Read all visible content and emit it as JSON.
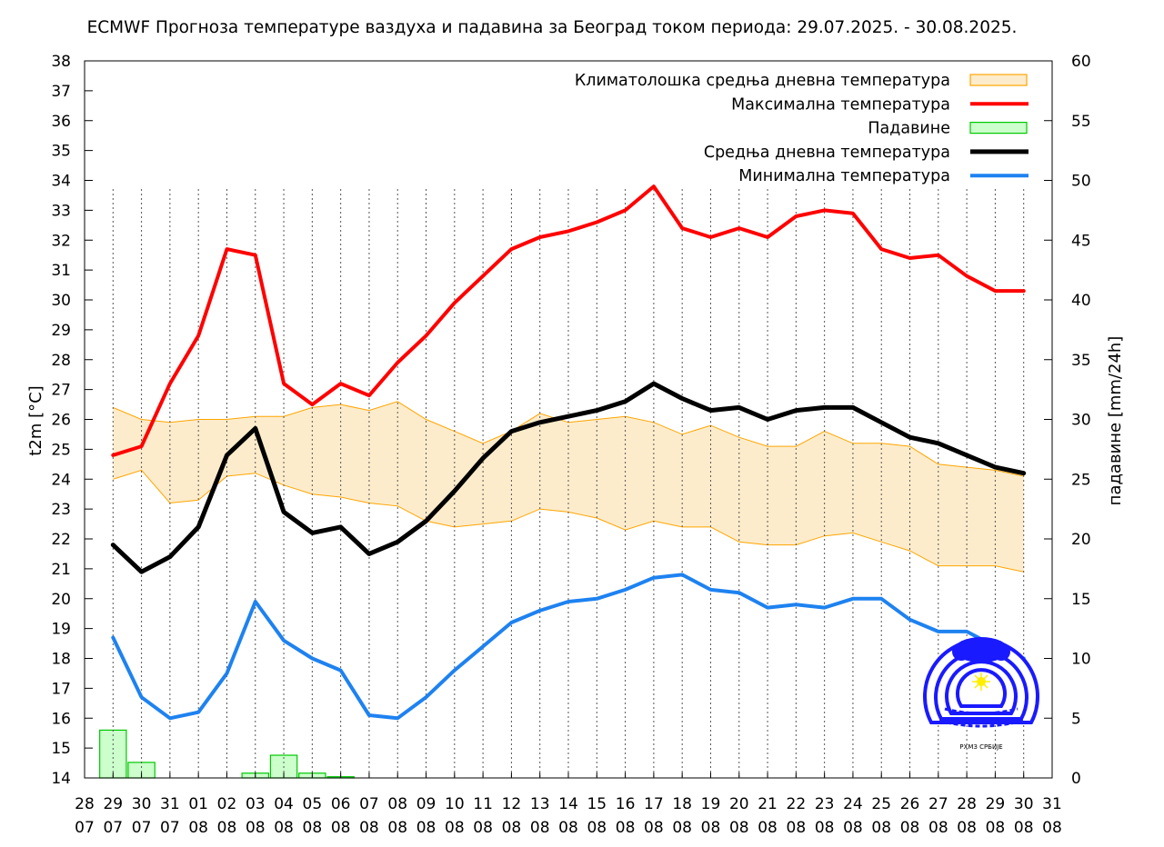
{
  "chart_data": {
    "type": "line",
    "title": "ECMWF Прогноза температуре ваздуха и падавина за Београд током периода: 29.07.2025. - 30.08.2025.",
    "ylabel": "t2m [°C]",
    "y2label": "падавине [mm/24h]",
    "ylim": [
      14,
      38
    ],
    "y2lim": [
      0,
      60
    ],
    "grid": "vertical dotted",
    "legend_position": "top-right",
    "x_ticks": [
      {
        "day": "28",
        "month": "07"
      },
      {
        "day": "29",
        "month": "07"
      },
      {
        "day": "30",
        "month": "07"
      },
      {
        "day": "31",
        "month": "07"
      },
      {
        "day": "01",
        "month": "08"
      },
      {
        "day": "02",
        "month": "08"
      },
      {
        "day": "03",
        "month": "08"
      },
      {
        "day": "04",
        "month": "08"
      },
      {
        "day": "05",
        "month": "08"
      },
      {
        "day": "06",
        "month": "08"
      },
      {
        "day": "07",
        "month": "08"
      },
      {
        "day": "08",
        "month": "08"
      },
      {
        "day": "09",
        "month": "08"
      },
      {
        "day": "10",
        "month": "08"
      },
      {
        "day": "11",
        "month": "08"
      },
      {
        "day": "12",
        "month": "08"
      },
      {
        "day": "13",
        "month": "08"
      },
      {
        "day": "14",
        "month": "08"
      },
      {
        "day": "15",
        "month": "08"
      },
      {
        "day": "16",
        "month": "08"
      },
      {
        "day": "17",
        "month": "08"
      },
      {
        "day": "18",
        "month": "08"
      },
      {
        "day": "19",
        "month": "08"
      },
      {
        "day": "20",
        "month": "08"
      },
      {
        "day": "21",
        "month": "08"
      },
      {
        "day": "22",
        "month": "08"
      },
      {
        "day": "23",
        "month": "08"
      },
      {
        "day": "24",
        "month": "08"
      },
      {
        "day": "25",
        "month": "08"
      },
      {
        "day": "26",
        "month": "08"
      },
      {
        "day": "27",
        "month": "08"
      },
      {
        "day": "28",
        "month": "08"
      },
      {
        "day": "29",
        "month": "08"
      },
      {
        "day": "30",
        "month": "08"
      },
      {
        "day": "31",
        "month": "08"
      }
    ],
    "y_ticks": [
      14,
      15,
      16,
      17,
      18,
      19,
      20,
      21,
      22,
      23,
      24,
      25,
      26,
      27,
      28,
      29,
      30,
      31,
      32,
      33,
      34,
      35,
      36,
      37,
      38
    ],
    "y2_ticks": [
      0,
      5,
      10,
      15,
      20,
      25,
      30,
      35,
      40,
      45,
      50,
      55,
      60
    ],
    "dates": [
      "29.07",
      "30.07",
      "31.07",
      "01.08",
      "02.08",
      "03.08",
      "04.08",
      "05.08",
      "06.08",
      "07.08",
      "08.08",
      "09.08",
      "10.08",
      "11.08",
      "12.08",
      "13.08",
      "14.08",
      "15.08",
      "16.08",
      "17.08",
      "18.08",
      "19.08",
      "20.08",
      "21.08",
      "22.08",
      "23.08",
      "24.08",
      "25.08",
      "26.08",
      "27.08",
      "28.08",
      "29.08",
      "30.08"
    ],
    "climate_band": {
      "name": "Климатолошка средња дневна температура",
      "color": "#ffa500",
      "fill": "#fdeccb",
      "upper": [
        26.4,
        26.0,
        25.9,
        26.0,
        26.0,
        26.1,
        26.1,
        26.4,
        26.5,
        26.3,
        26.6,
        26.0,
        25.6,
        25.2,
        25.6,
        26.2,
        25.9,
        26.0,
        26.1,
        25.9,
        25.5,
        25.8,
        25.4,
        25.1,
        25.1,
        25.6,
        25.2,
        25.2,
        25.1,
        24.5,
        24.4,
        24.3,
        24.1
      ],
      "lower": [
        24.0,
        24.3,
        23.2,
        23.3,
        24.1,
        24.2,
        23.8,
        23.5,
        23.4,
        23.2,
        23.1,
        22.6,
        22.4,
        22.5,
        22.6,
        23.0,
        22.9,
        22.7,
        22.3,
        22.6,
        22.4,
        22.4,
        21.9,
        21.8,
        21.8,
        22.1,
        22.2,
        21.9,
        21.6,
        21.1,
        21.1,
        21.1,
        20.9
      ]
    },
    "series": [
      {
        "name": "Максимална температура",
        "color": "#ff0000",
        "values": [
          24.8,
          25.1,
          27.2,
          28.8,
          31.7,
          31.5,
          27.2,
          26.5,
          27.2,
          26.8,
          27.9,
          28.8,
          29.9,
          30.8,
          31.7,
          32.1,
          32.3,
          32.6,
          33.0,
          33.8,
          32.4,
          32.1,
          32.4,
          32.1,
          32.8,
          33.0,
          32.9,
          31.7,
          31.4,
          31.5,
          30.8,
          30.3,
          30.3
        ]
      },
      {
        "name": "Средња дневна температура",
        "color": "#000000",
        "values": [
          21.8,
          20.9,
          21.4,
          22.4,
          24.8,
          25.7,
          22.9,
          22.2,
          22.4,
          21.5,
          21.9,
          22.6,
          23.6,
          24.7,
          25.6,
          25.9,
          26.1,
          26.3,
          26.6,
          27.2,
          26.7,
          26.3,
          26.4,
          26.0,
          26.3,
          26.4,
          26.4,
          25.9,
          25.4,
          25.2,
          24.8,
          24.4,
          24.2
        ]
      },
      {
        "name": "Минимална температура",
        "color": "#1e82f0",
        "values": [
          18.7,
          16.7,
          16.0,
          16.2,
          17.5,
          19.9,
          18.6,
          18.0,
          17.6,
          16.1,
          16.0,
          16.7,
          17.6,
          18.4,
          19.2,
          19.6,
          19.9,
          20.0,
          20.3,
          20.7,
          20.8,
          20.3,
          20.2,
          19.7,
          19.8,
          19.7,
          20.0,
          20.0,
          19.3,
          18.9,
          18.9,
          18.4,
          18.0
        ]
      }
    ],
    "precipitation": {
      "name": "Падавине",
      "color": "#00c800",
      "fill": "#ccffcc",
      "values": [
        4.0,
        1.3,
        0,
        0,
        0,
        0.4,
        1.9,
        0.4,
        0.1,
        0,
        0,
        0,
        0,
        0,
        0,
        0,
        0,
        0,
        0,
        0,
        0,
        0,
        0,
        0,
        0,
        0,
        0,
        0,
        0,
        0,
        0,
        0,
        0
      ]
    }
  },
  "logo": {
    "name": "rhmz-srbije-logo",
    "text": "РХМЗ СРБИЈЕ"
  }
}
